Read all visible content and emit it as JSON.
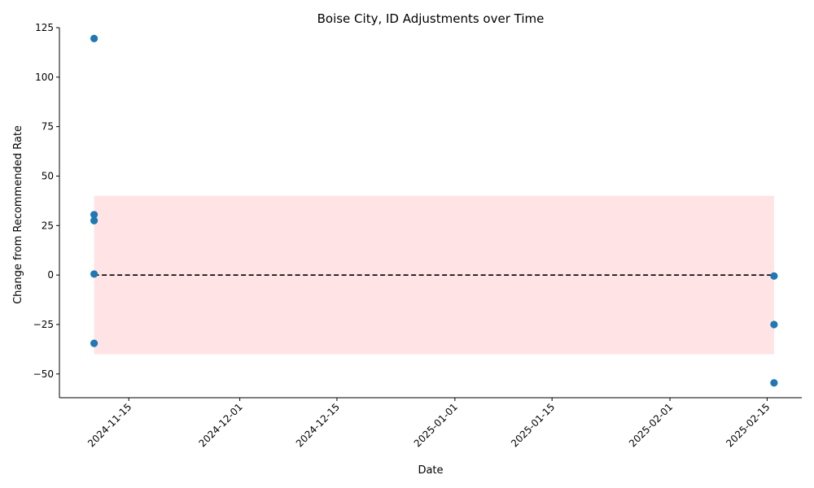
{
  "chart_data": {
    "type": "scatter",
    "title": "Boise City, ID Adjustments over Time",
    "xlabel": "Date",
    "ylabel": "Change from Recommended Rate",
    "x_scale": "date",
    "xlim": [
      "2024-11-05",
      "2025-02-20"
    ],
    "ylim": [
      -62,
      125
    ],
    "x_ticks": [
      "2024-11-15",
      "2024-12-01",
      "2024-12-15",
      "2025-01-01",
      "2025-01-15",
      "2025-02-01",
      "2025-02-15"
    ],
    "y_ticks": [
      -50,
      -25,
      0,
      25,
      50,
      75,
      100,
      125
    ],
    "grid": false,
    "series": [
      {
        "color": "#1f77b4",
        "points": [
          {
            "x": "2024-11-10",
            "y": 119.5
          },
          {
            "x": "2024-11-10",
            "y": 30.5
          },
          {
            "x": "2024-11-10",
            "y": 27.5
          },
          {
            "x": "2024-11-10",
            "y": 0.5
          },
          {
            "x": "2024-11-10",
            "y": -34.5
          },
          {
            "x": "2025-02-16",
            "y": -0.5
          },
          {
            "x": "2025-02-16",
            "y": -25
          },
          {
            "x": "2025-02-16",
            "y": -54.5
          }
        ]
      }
    ],
    "reference_line": {
      "y": 0,
      "x_start": "2024-11-10",
      "x_end": "2025-02-16",
      "color": "#000000",
      "style": "dashed"
    },
    "band": {
      "y_low": -40,
      "y_high": 40,
      "x_start": "2024-11-10",
      "x_end": "2025-02-16",
      "color": "#ffcccf"
    }
  }
}
